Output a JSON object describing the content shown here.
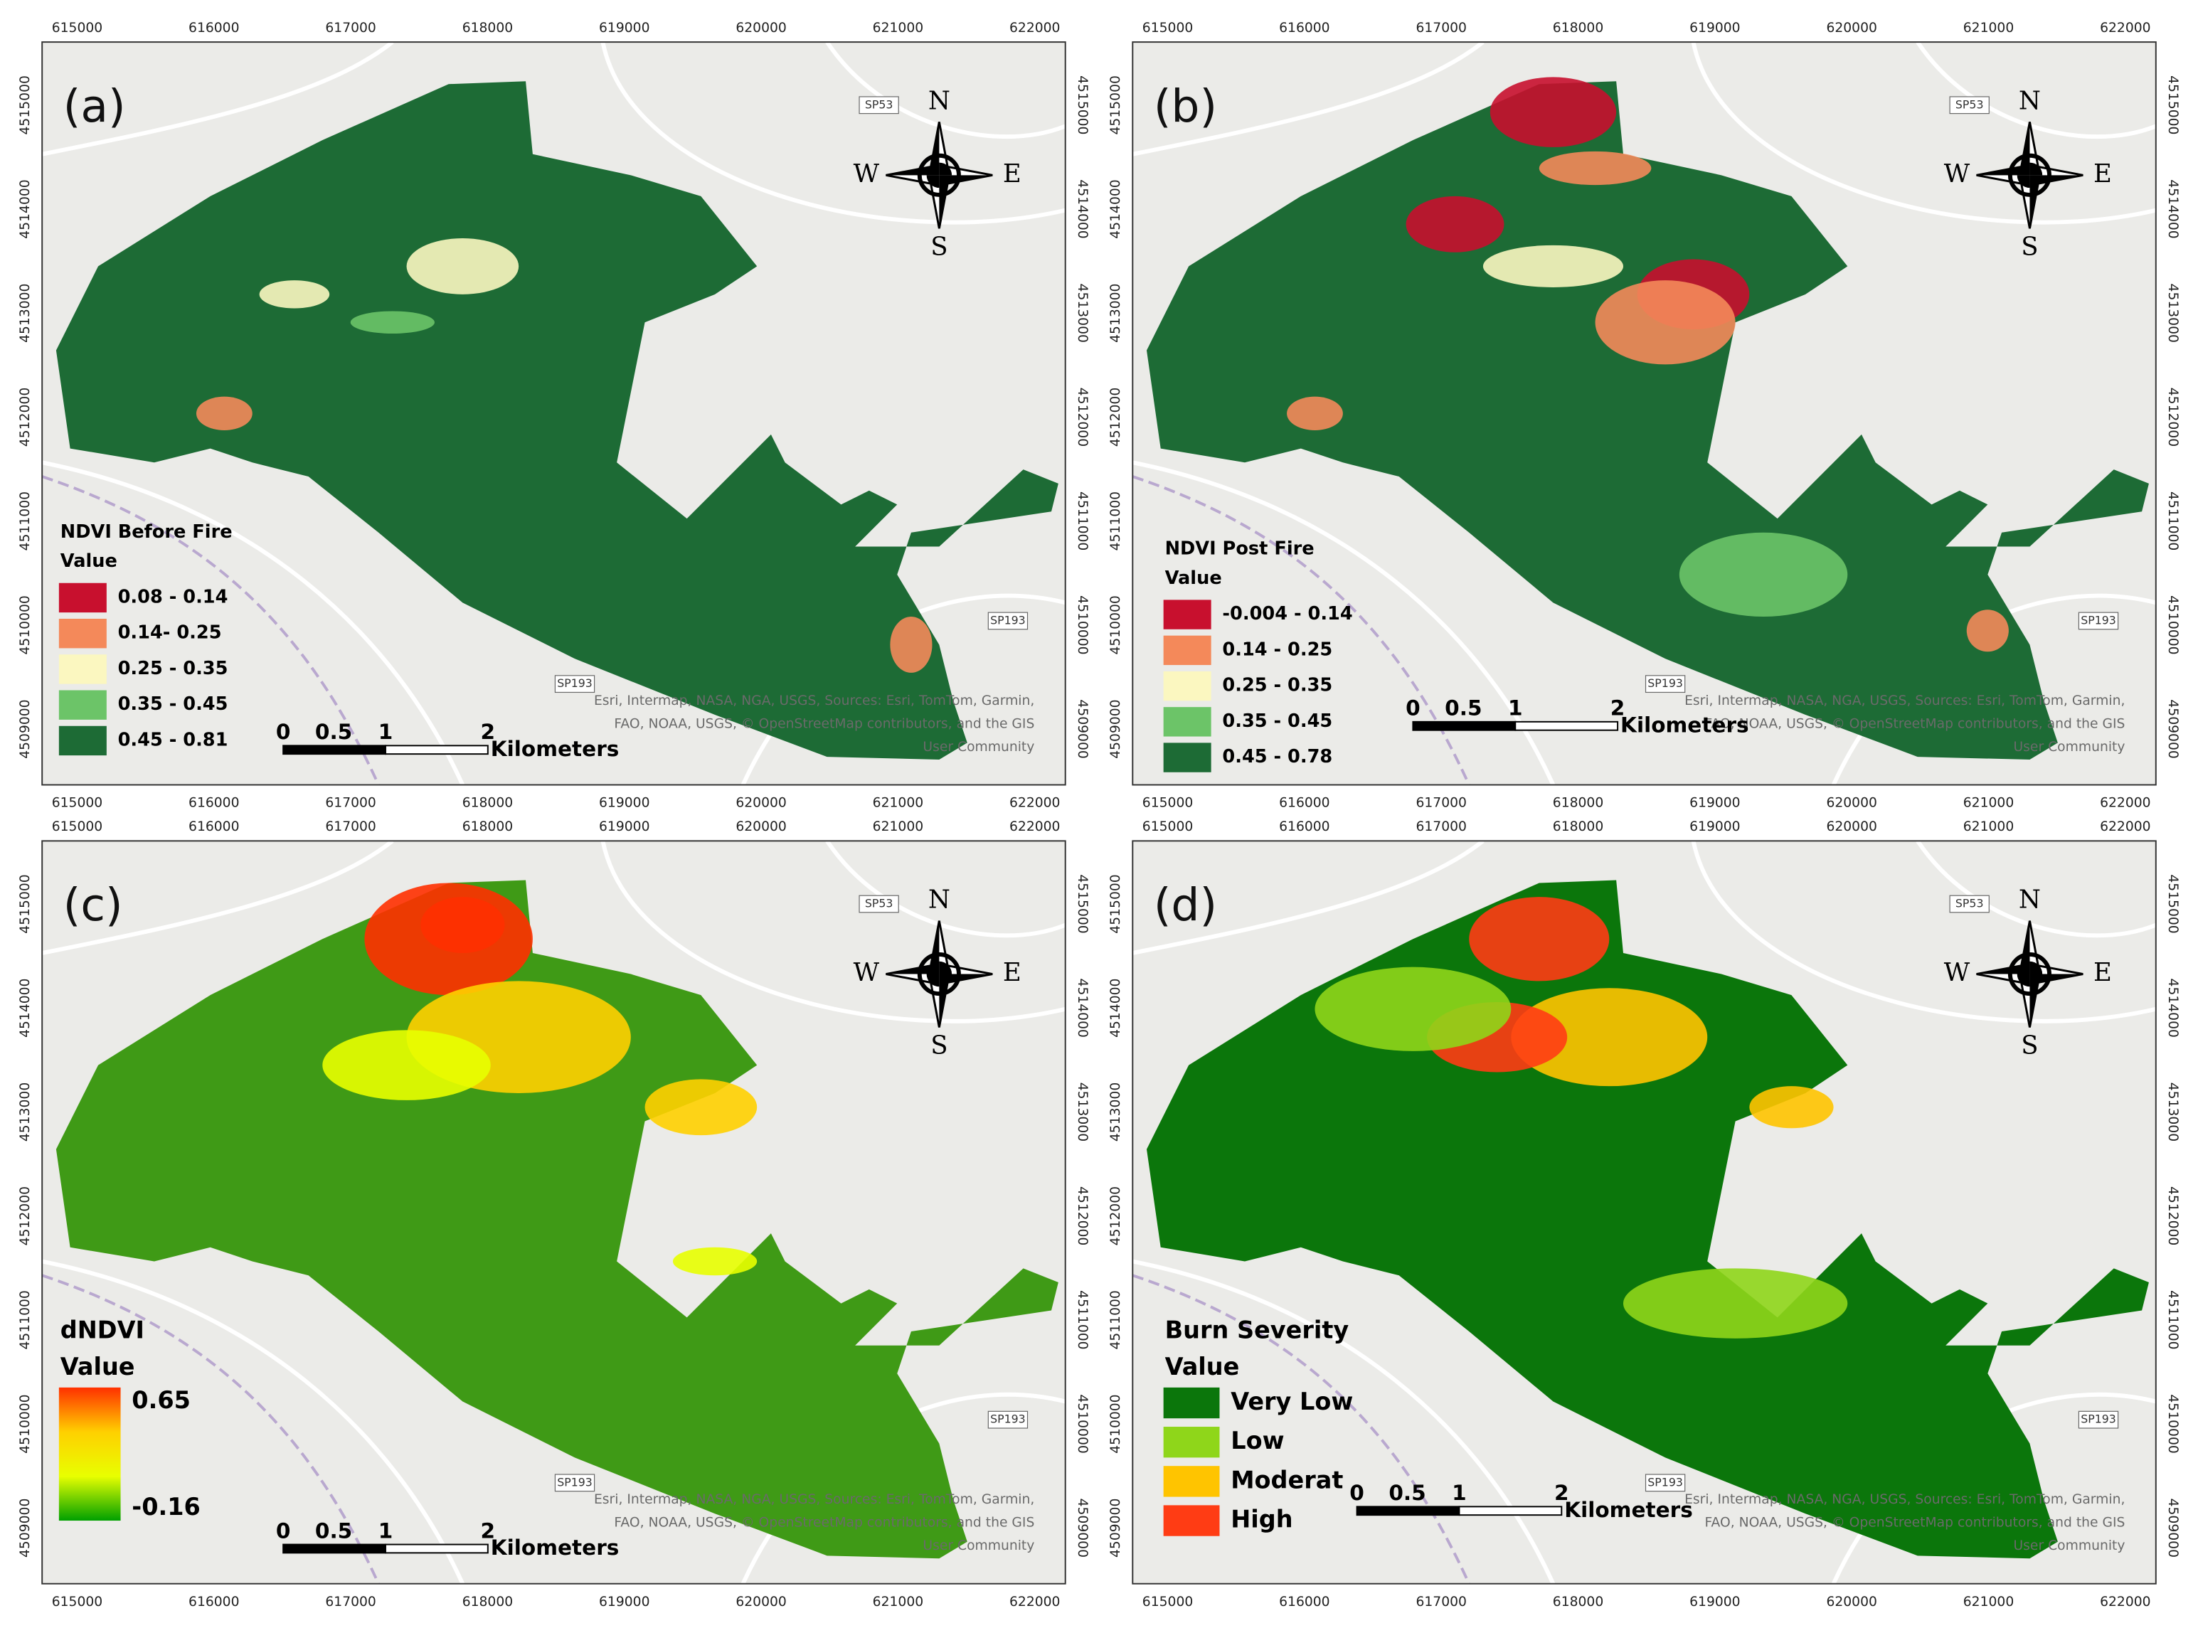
{
  "axes": {
    "x_ticks": [
      615000,
      616000,
      617000,
      618000,
      619000,
      620000,
      621000,
      622000
    ],
    "y_ticks": [
      4515000,
      4514000,
      4513000,
      4512000,
      4511000,
      4510000,
      4509000
    ]
  },
  "compass": {
    "n": "N",
    "e": "E",
    "s": "S",
    "w": "W"
  },
  "scale_bar": {
    "labels": [
      "0",
      "0.5",
      "1",
      "2"
    ],
    "unit": "Kilometers"
  },
  "road_labels": [
    "SP53",
    "SP193",
    "SP193"
  ],
  "attribution": [
    "Esri, Intermap, NASA, NGA, USGS, Sources: Esri, TomTom, Garmin,",
    "FAO, NOAA, USGS, © OpenStreetMap contributors, and the GIS",
    "User Community"
  ],
  "panels": [
    {
      "label": "(a)",
      "legend_title": "NDVI Before Fire",
      "legend_subtitle": "Value",
      "area_color": "#1d6b35",
      "legend_items": [
        {
          "label": "0.08 - 0.14",
          "color": "#c8102e"
        },
        {
          "label": "0.14- 0.25",
          "color": "#f4895a"
        },
        {
          "label": "0.25 - 0.35",
          "color": "#fbf7c0"
        },
        {
          "label": "0.35 - 0.45",
          "color": "#6cc468"
        },
        {
          "label": "0.45 - 0.81",
          "color": "#1d6b35"
        }
      ]
    },
    {
      "label": "(b)",
      "legend_title": "NDVI Post Fire",
      "legend_subtitle": "Value",
      "area_color": "#1d6b35",
      "legend_items": [
        {
          "label": "-0.004 - 0.14",
          "color": "#c8102e"
        },
        {
          "label": "0.14 - 0.25",
          "color": "#f4895a"
        },
        {
          "label": "0.25 - 0.35",
          "color": "#fbf7c0"
        },
        {
          "label": "0.35 - 0.45",
          "color": "#6cc468"
        },
        {
          "label": "0.45 - 0.78",
          "color": "#1d6b35"
        }
      ]
    },
    {
      "label": "(c)",
      "legend_title": "dNDVI",
      "legend_subtitle": "Value",
      "area_color": "#3f9a16",
      "gradient": {
        "high": "0.65",
        "low": "-0.16",
        "colors": [
          "#ff3000",
          "#ffd000",
          "#e8ff00",
          "#00a000"
        ]
      }
    },
    {
      "label": "(d)",
      "legend_title": "Burn Severity",
      "legend_subtitle": "Value",
      "area_color": "#0b760b",
      "legend_items": [
        {
          "label": "Very Low",
          "color": "#0b760b"
        },
        {
          "label": "Low",
          "color": "#8fd61a"
        },
        {
          "label": "Moderat",
          "color": "#ffc400"
        },
        {
          "label": "High",
          "color": "#ff3c14"
        }
      ]
    }
  ]
}
